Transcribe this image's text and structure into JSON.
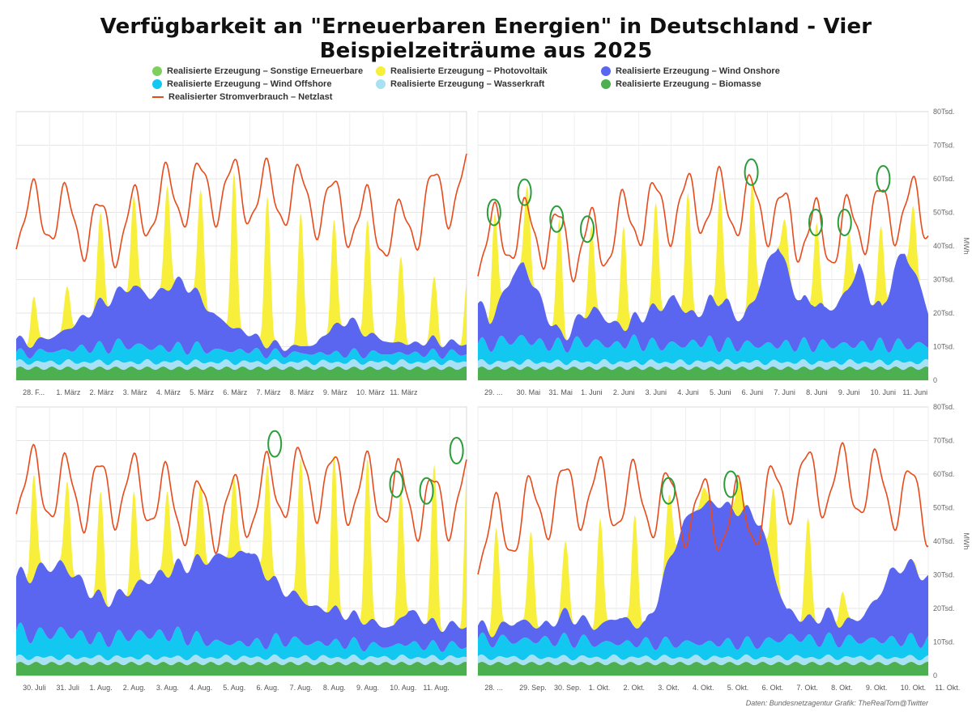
{
  "title": "Verfügbarkeit an \"Erneuerbaren Energien\" in Deutschland - Vier Beispielzeiträume aus 2025",
  "legend": [
    {
      "label": "Realisierte Erzeugung – Sonstige Erneuerbare",
      "color": "#7fcf5f",
      "kind": "dot"
    },
    {
      "label": "Realisierte Erzeugung – Photovoltaik",
      "color": "#f7ef3c",
      "kind": "dot"
    },
    {
      "label": "Realisierte Erzeugung – Wind Onshore",
      "color": "#5a66f0",
      "kind": "dot"
    },
    {
      "label": "Realisierte Erzeugung – Wind Offshore",
      "color": "#12c8f0",
      "kind": "dot"
    },
    {
      "label": "Realisierte Erzeugung – Wasserkraft",
      "color": "#a8e0f4",
      "kind": "dot"
    },
    {
      "label": "Realisierte Erzeugung – Biomasse",
      "color": "#4caf50",
      "kind": "dot"
    },
    {
      "label": "Realisierter Stromverbrauch – Netzlast",
      "color": "#e84a1a",
      "kind": "line"
    }
  ],
  "source_note": "Daten: Bundesnetzagentur  Grafik: TheRealTom@Twitter",
  "colors": {
    "biomass": "#4caf50",
    "hydro": "#a8e0f4",
    "offshore": "#12c8f0",
    "onshore": "#5a66f0",
    "solar": "#f7ef3c",
    "load": "#e84a1a",
    "marker": "#2a9d3a",
    "grid": "#e6e6e6"
  },
  "chart_data": [
    {
      "type": "area",
      "panel": "top-left",
      "x_ticks": [
        "28. F...",
        "1. März",
        "2. März",
        "3. März",
        "4. März",
        "5. März",
        "6. März",
        "7. März",
        "8. März",
        "9. März",
        "10. März",
        "11. März"
      ],
      "y_ticks": [],
      "ylabel": "",
      "ylim": [
        0,
        80000
      ],
      "days": 13.5,
      "load": {
        "base": [
          48,
          50,
          46,
          44,
          53,
          56,
          57,
          55,
          55,
          52,
          48,
          43,
          54,
          58
        ],
        "amp": 10
      },
      "solar_peaks": [
        25,
        28,
        50,
        55,
        58,
        57,
        62,
        55,
        50,
        48,
        48,
        37,
        31
      ],
      "onshore": [
        4,
        3,
        4,
        6,
        9,
        13,
        15,
        18,
        15,
        18,
        20,
        15,
        10,
        7,
        5,
        3,
        2,
        2,
        3,
        8,
        10,
        6,
        4,
        3,
        3,
        4,
        3,
        3
      ],
      "offshore": [
        3,
        3,
        4,
        4,
        5,
        5,
        6,
        6,
        5,
        5,
        5,
        5,
        4,
        4,
        4,
        3,
        3,
        3,
        3,
        3,
        3,
        3,
        3,
        3,
        3,
        3,
        3,
        3
      ],
      "markers": []
    },
    {
      "type": "area",
      "panel": "top-right",
      "x_ticks": [
        "29. ...",
        "30. Mai",
        "31. Mai",
        "1. Juni",
        "2. Juni",
        "3. Juni",
        "4. Juni",
        "5. Juni",
        "6. Juni",
        "7. Juni",
        "8. Juni",
        "9. Juni",
        "10. Juni",
        "11. Juni"
      ],
      "y_ticks": [
        "0",
        "10Tsd.",
        "20Tsd.",
        "30Tsd.",
        "40Tsd.",
        "50Tsd.",
        "60Tsd.",
        "70Tsd.",
        "80Tsd."
      ],
      "ylabel": "MWh",
      "ylim": [
        0,
        80000
      ],
      "days": 14,
      "load": {
        "base": [
          40,
          44,
          44,
          40,
          42,
          50,
          51,
          53,
          52,
          51,
          45,
          42,
          48,
          51,
          50
        ],
        "amp": 10
      },
      "solar_peaks": [
        50,
        58,
        48,
        46,
        46,
        53,
        56,
        57,
        60,
        48,
        47,
        44,
        46,
        52,
        58
      ],
      "onshore": [
        12,
        8,
        12,
        20,
        22,
        16,
        9,
        3,
        4,
        8,
        10,
        8,
        6,
        5,
        8,
        10,
        12,
        14,
        10,
        8,
        12,
        14,
        10,
        8,
        14,
        24,
        30,
        20,
        12,
        14,
        10,
        12,
        16,
        24,
        14,
        10,
        22,
        28,
        20,
        10
      ],
      "offshore": [
        6,
        6,
        7,
        8,
        8,
        7,
        6,
        6,
        6,
        7,
        7,
        6,
        6,
        7,
        7,
        6,
        6,
        6,
        6,
        7,
        7,
        6,
        6,
        6,
        6,
        6,
        6,
        6,
        6,
        6,
        6,
        6,
        6,
        6,
        6,
        6,
        6,
        6,
        6,
        6
      ],
      "markers": [
        [
          0.5,
          50
        ],
        [
          1.45,
          56
        ],
        [
          2.45,
          48
        ],
        [
          3.4,
          45
        ],
        [
          8.5,
          62
        ],
        [
          10.5,
          47
        ],
        [
          11.4,
          47
        ],
        [
          12.6,
          60
        ]
      ]
    },
    {
      "type": "area",
      "panel": "bottom-left",
      "x_ticks": [
        "30. Juli",
        "31. Juli",
        "1. Aug.",
        "2. Aug.",
        "3. Aug.",
        "4. Aug.",
        "5. Aug.",
        "6. Aug.",
        "7. Aug.",
        "8. Aug.",
        "9. Aug.",
        "10. Aug.",
        "11. Aug."
      ],
      "y_ticks": [],
      "ylabel": "",
      "ylim": [
        0,
        80000
      ],
      "days": 13.5,
      "load": {
        "base": [
          58,
          56,
          54,
          55,
          55,
          50,
          48,
          50,
          56,
          58,
          56,
          55,
          53,
          50,
          54
        ],
        "amp": 11
      },
      "solar_peaks": [
        60,
        58,
        55,
        55,
        55,
        57,
        59,
        63,
        65,
        66,
        65,
        56,
        63,
        65
      ],
      "onshore": [
        16,
        18,
        20,
        20,
        18,
        14,
        12,
        12,
        14,
        16,
        18,
        20,
        22,
        24,
        26,
        26,
        28,
        22,
        16,
        14,
        12,
        10,
        10,
        8,
        8,
        6,
        6,
        10,
        8,
        6,
        6,
        6
      ],
      "offshore": [
        9,
        8,
        8,
        9,
        8,
        7,
        6,
        7,
        8,
        8,
        8,
        8,
        7,
        6,
        5,
        5,
        5,
        5,
        6,
        6,
        5,
        5,
        5,
        5,
        4,
        4,
        4,
        5,
        4,
        4,
        4,
        4
      ],
      "markers": [
        [
          7.75,
          69
        ],
        [
          11.4,
          57
        ],
        [
          12.3,
          55
        ],
        [
          13.2,
          67
        ]
      ]
    },
    {
      "type": "area",
      "panel": "bottom-right",
      "x_ticks": [
        "28. ...",
        "29. Sep.",
        "30. Sep.",
        "1. Okt.",
        "2. Okt.",
        "3. Okt.",
        "4. Okt.",
        "5. Okt.",
        "6. Okt.",
        "7. Okt.",
        "8. Okt.",
        "9. Okt.",
        "10. Okt.",
        "11. Okt."
      ],
      "y_ticks": [
        "0",
        "10Tsd.",
        "20Tsd.",
        "30Tsd.",
        "40Tsd.",
        "50Tsd.",
        "60Tsd.",
        "70Tsd.",
        "80Tsd."
      ],
      "ylabel": "MWh",
      "ylim": [
        0,
        80000
      ],
      "days": 13,
      "load": {
        "base": [
          40,
          45,
          52,
          55,
          53,
          52,
          50,
          47,
          48,
          57,
          58,
          57,
          55,
          50
        ],
        "amp": 11
      },
      "solar_peaks": [
        44,
        43,
        40,
        47,
        48,
        54,
        56,
        58,
        56,
        47,
        25,
        20,
        34,
        37
      ],
      "onshore": [
        4,
        3,
        4,
        6,
        5,
        4,
        6,
        8,
        6,
        5,
        6,
        8,
        6,
        5,
        14,
        26,
        36,
        40,
        42,
        41,
        40,
        39,
        36,
        20,
        8,
        6,
        6,
        8,
        6,
        5,
        8,
        12,
        20,
        22,
        22,
        18
      ],
      "offshore": [
        6,
        6,
        6,
        6,
        6,
        6,
        6,
        6,
        6,
        5,
        5,
        5,
        5,
        5,
        5,
        5,
        5,
        5,
        5,
        5,
        5,
        5,
        5,
        6,
        7,
        7,
        6,
        6,
        6,
        6,
        6,
        6,
        6,
        6,
        6,
        6
      ],
      "markers": [
        [
          5.5,
          55
        ],
        [
          7.3,
          57
        ]
      ]
    }
  ]
}
